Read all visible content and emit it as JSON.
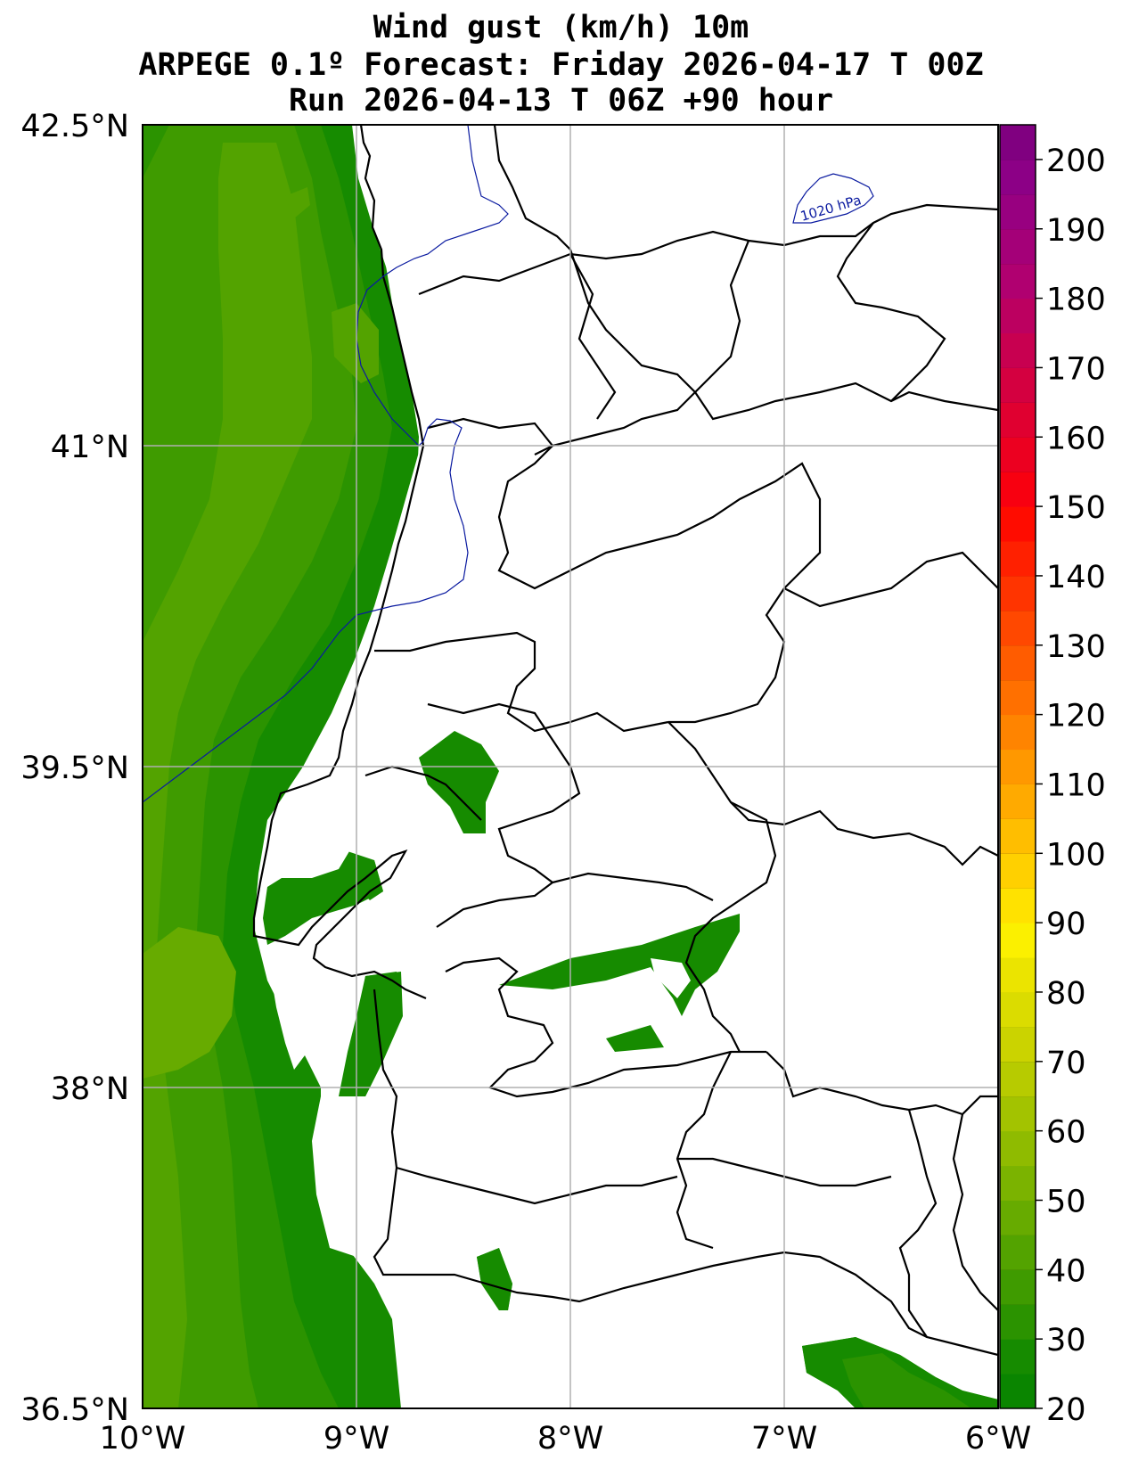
{
  "title": {
    "line1": "Wind gust (km/h) 10m",
    "line2": "ARPEGE 0.1º Forecast: Friday 2026-04-17 T 00Z",
    "line3": "Run 2026-04-13 T 06Z +90 hour"
  },
  "map": {
    "lon_range": [
      -10,
      -6
    ],
    "lat_range": [
      36.5,
      42.5
    ],
    "lon_ticks": [
      "10°W",
      "9°W",
      "8°W",
      "7°W",
      "6°W"
    ],
    "lat_ticks": [
      "42.5°N",
      "41°N",
      "39.5°N",
      "38°N",
      "36.5°N"
    ],
    "grid": true,
    "isobar_label": "1020 hPa"
  },
  "colorbar": {
    "ticks": [
      "20",
      "30",
      "40",
      "50",
      "60",
      "70",
      "80",
      "90",
      "100",
      "110",
      "120",
      "130",
      "140",
      "150",
      "160",
      "170",
      "180",
      "190",
      "200"
    ],
    "range": [
      20,
      205
    ],
    "colors": [
      "#0a8500",
      "#168b00",
      "#2b9300",
      "#3f9b00",
      "#53a300",
      "#67ab00",
      "#7bb300",
      "#8fbb00",
      "#a3c300",
      "#b7cb00",
      "#cbd300",
      "#dbdc00",
      "#ebe400",
      "#fbf000",
      "#ffe200",
      "#ffd000",
      "#ffbe00",
      "#ffaa00",
      "#ff9800",
      "#ff8400",
      "#ff7000",
      "#ff5c00",
      "#ff4800",
      "#ff3400",
      "#ff2000",
      "#ff0c00",
      "#f80010",
      "#ec0020",
      "#e00030",
      "#d40040",
      "#c80050",
      "#bc0060",
      "#b00070",
      "#a40078",
      "#980080",
      "#8c0086",
      "#800080"
    ]
  }
}
